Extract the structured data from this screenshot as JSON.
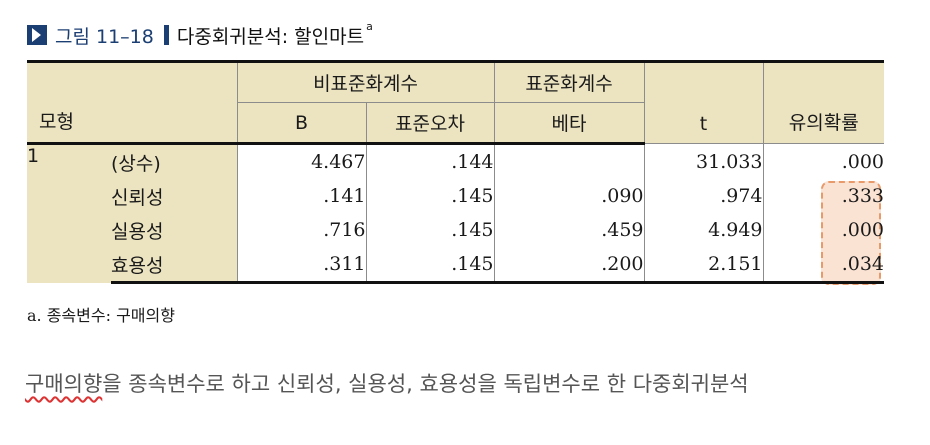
{
  "figure": {
    "label": "그림 11–18",
    "title": "다중회귀분석: 할인마트",
    "superscript": "a"
  },
  "table": {
    "header": {
      "model": "모형",
      "unstd": "비표준화계수",
      "std": "표준화계수",
      "b": "B",
      "se": "표준오차",
      "beta": "베타",
      "t": "t",
      "sig": "유의확률"
    },
    "model_number": "1",
    "rows": [
      {
        "var": "(상수)",
        "b": "4.467",
        "se": ".144",
        "beta": "",
        "t": "31.033",
        "sig": ".000"
      },
      {
        "var": "신뢰성",
        "b": ".141",
        "se": ".145",
        "beta": ".090",
        "t": ".974",
        "sig": ".333"
      },
      {
        "var": "실용성",
        "b": ".716",
        "se": ".145",
        "beta": ".459",
        "t": "4.949",
        "sig": ".000"
      },
      {
        "var": "효용성",
        "b": ".311",
        "se": ".145",
        "beta": ".200",
        "t": "2.151",
        "sig": ".034"
      }
    ],
    "highlight_color": "#fbe3d4"
  },
  "footnote": "a. 종속변수: 구매의향",
  "caption": {
    "underlined": "구매의향",
    "rest": "을 종속변수로 하고 신뢰성, 실용성, 효용성을 독립변수로 한 다중회귀분석"
  }
}
